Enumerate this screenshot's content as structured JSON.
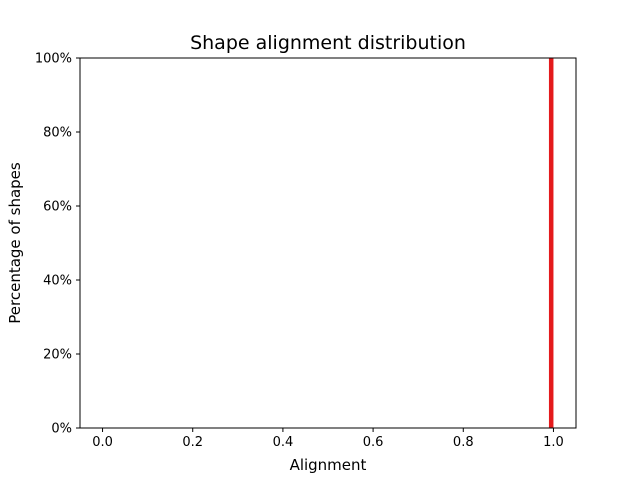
{
  "chart_data": {
    "type": "bar",
    "title": "Shape alignment distribution",
    "xlabel": "Alignment",
    "ylabel": "Percentage of shapes",
    "xlim": [
      -0.05,
      1.05
    ],
    "ylim": [
      0,
      1.0
    ],
    "x_ticks": [
      0.0,
      0.2,
      0.4,
      0.6,
      0.8,
      1.0
    ],
    "x_tick_labels": [
      "0.0",
      "0.2",
      "0.4",
      "0.6",
      "0.8",
      "1.0"
    ],
    "y_ticks": [
      0,
      0.2,
      0.4,
      0.6,
      0.8,
      1.0
    ],
    "y_tick_labels": [
      "0%",
      "20%",
      "40%",
      "60%",
      "80%",
      "100%"
    ],
    "bars": [
      {
        "x_start": 0.99,
        "x_end": 1.0,
        "value": 1.0
      }
    ],
    "bar_color": "#e41a1c",
    "grid": false
  }
}
